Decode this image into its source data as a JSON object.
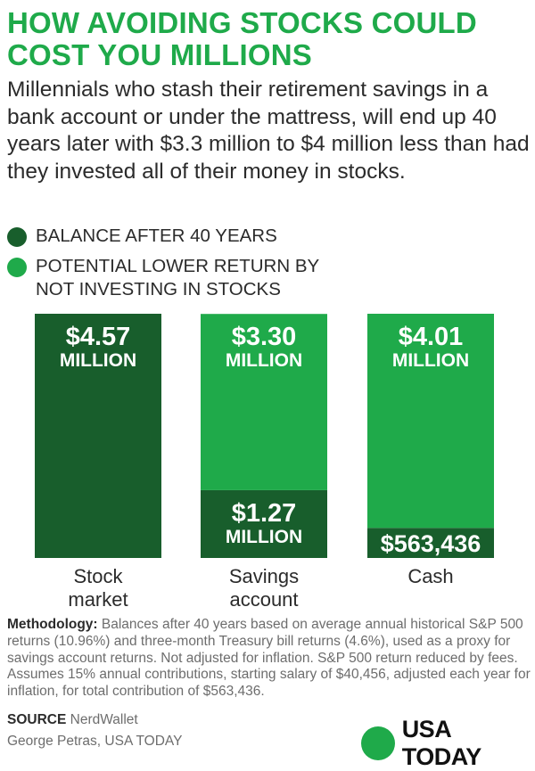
{
  "title": "HOW AVOIDING STOCKS COULD COST YOU MILLIONS",
  "subtitle": "Millennials who stash their retirement savings in a bank account or under the mattress, will end up 40 years later with $3.3 million to $4 million less than had they invested all of their money in stocks.",
  "legend": [
    {
      "label": "BALANCE AFTER 40 YEARS",
      "color": "#185e2c"
    },
    {
      "label": "POTENTIAL LOWER RETURN BY NOT INVESTING IN STOCKS",
      "color": "#1faa4a"
    }
  ],
  "chart_data": {
    "type": "bar",
    "stacked": true,
    "unit": "million dollars",
    "categories": [
      "Stock market",
      "Savings account",
      "Cash"
    ],
    "series": [
      {
        "name": "BALANCE AFTER 40 YEARS",
        "color": "#185e2c",
        "values": [
          4.57,
          1.27,
          0.563436
        ],
        "labels": [
          [
            "$4.57",
            "MILLION"
          ],
          [
            "$1.27",
            "MILLION"
          ],
          [
            "$563,436"
          ]
        ]
      },
      {
        "name": "POTENTIAL LOWER RETURN BY NOT INVESTING IN STOCKS",
        "color": "#1faa4a",
        "values": [
          0,
          3.3,
          4.01
        ],
        "labels": [
          [],
          [
            "$3.30",
            "MILLION"
          ],
          [
            "$4.01",
            "MILLION"
          ]
        ]
      }
    ],
    "category_labels": [
      [
        "Stock",
        "market"
      ],
      [
        "Savings",
        "account"
      ],
      [
        "Cash"
      ]
    ]
  },
  "methodology": {
    "label": "Methodology:",
    "text": "Balances after 40 years based on average annual historical S&P 500 returns (10.96%) and three-month Treasury bill returns (4.6%), used as a proxy for savings account returns. Not adjusted for inflation. S&P 500 return reduced by fees. Assumes 15% annual contributions, starting salary of $40,456, adjusted each year for inflation, for total contribution of $563,436."
  },
  "source": {
    "label": "SOURCE",
    "text": "NerdWallet"
  },
  "credit": "George Petras, USA TODAY",
  "logo": {
    "text": "USA TODAY",
    "color": "#1faa4a"
  }
}
